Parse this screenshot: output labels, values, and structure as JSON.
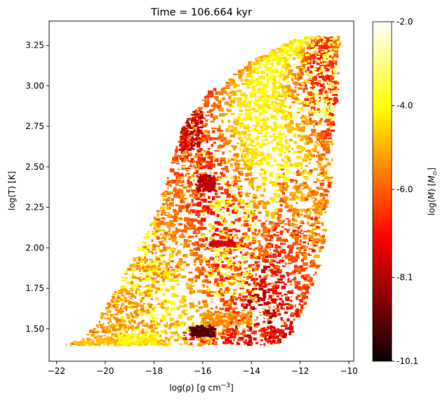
{
  "chart_data": {
    "type": "scatter",
    "title": "Time = 106.664 kyr",
    "xlabel": "log(ρ) [g cm−3]",
    "xlabel_parts": {
      "main": "log(ρ) [g cm",
      "sup": "−3",
      "tail": "]"
    },
    "ylabel": "log(T) [K]",
    "xlim": [
      -22.3,
      -9.8
    ],
    "ylim": [
      1.3,
      3.4
    ],
    "x_ticks": [
      -22,
      -20,
      -18,
      -16,
      -14,
      -12,
      -10
    ],
    "x_tick_labels": [
      "−22",
      "−20",
      "−18",
      "−16",
      "−14",
      "−12",
      "−10"
    ],
    "y_ticks": [
      1.5,
      1.75,
      2.0,
      2.25,
      2.5,
      2.75,
      3.0,
      3.25
    ],
    "y_tick_labels": [
      "1.50",
      "1.75",
      "2.00",
      "2.25",
      "2.50",
      "2.75",
      "3.00",
      "3.25"
    ],
    "grid": false,
    "colormap": "hot",
    "colorbar": {
      "label": "log(M) [M⊙]",
      "label_parts": {
        "pre": "log(",
        "var": "M",
        "mid": ") [",
        "sym": "M",
        "sub": "⊙",
        "post": "]"
      },
      "min": -10.1,
      "max": -2.0,
      "ticks": [
        -2.0,
        -4.0,
        -6.0,
        -8.1,
        -10.1
      ],
      "tick_labels": [
        "-2.0",
        "-4.0",
        "-6.0",
        "-8.1",
        "-10.1"
      ]
    },
    "point_clusters": [
      {
        "x": [
          -21.7,
          -17.5
        ],
        "y": [
          1.4,
          1.43
        ],
        "c": -4.8
      },
      {
        "x": [
          -21.0,
          -17.0
        ],
        "y": [
          1.42,
          1.55
        ],
        "c": -5.2
      },
      {
        "x": [
          -20.8,
          -18.0
        ],
        "y": [
          1.5,
          1.75
        ],
        "c": -5.5
      },
      {
        "x": [
          -19.8,
          -17.5
        ],
        "y": [
          1.6,
          2.0
        ],
        "c": -5.3
      },
      {
        "x": [
          -18.8,
          -17.0
        ],
        "y": [
          1.8,
          2.4
        ],
        "c": -5.6
      },
      {
        "x": [
          -18.0,
          -16.5
        ],
        "y": [
          2.0,
          2.75
        ],
        "c": -5.8
      },
      {
        "x": [
          -17.0,
          -15.8
        ],
        "y": [
          2.3,
          2.95
        ],
        "c": -5.4
      },
      {
        "x": [
          -17.0,
          -16.0
        ],
        "y": [
          2.6,
          2.85
        ],
        "c": -7.8
      },
      {
        "x": [
          -16.0,
          -14.0
        ],
        "y": [
          1.5,
          2.6
        ],
        "c": -4.5
      },
      {
        "x": [
          -15.5,
          -13.8
        ],
        "y": [
          1.7,
          2.3
        ],
        "c": -3.8
      },
      {
        "x": [
          -15.0,
          -13.0
        ],
        "y": [
          1.45,
          2.1
        ],
        "c": -5.6
      },
      {
        "x": [
          -14.5,
          -12.5
        ],
        "y": [
          2.5,
          3.0
        ],
        "c": -4.3
      },
      {
        "x": [
          -14.0,
          -11.5
        ],
        "y": [
          2.8,
          3.25
        ],
        "c": -4.0
      },
      {
        "x": [
          -13.5,
          -11.2
        ],
        "y": [
          1.45,
          2.2
        ],
        "c": -6.6
      },
      {
        "x": [
          -13.0,
          -11.0
        ],
        "y": [
          1.5,
          2.5
        ],
        "c": -6.1
      },
      {
        "x": [
          -12.5,
          -10.6
        ],
        "y": [
          2.2,
          3.0
        ],
        "c": -4.9
      },
      {
        "x": [
          -11.5,
          -10.4
        ],
        "y": [
          2.8,
          3.3
        ],
        "c": -3.3
      },
      {
        "x": [
          -16.8,
          -12.8
        ],
        "y": [
          1.4,
          1.5
        ],
        "c": -6.8
      },
      {
        "x": [
          -16.5,
          -15.5
        ],
        "y": [
          1.45,
          1.52
        ],
        "c": -9.2
      },
      {
        "x": [
          -16.2,
          -15.5
        ],
        "y": [
          2.35,
          2.45
        ],
        "c": -8.0
      },
      {
        "x": [
          -15.7,
          -14.7
        ],
        "y": [
          2.01,
          2.04
        ],
        "c": -7.5
      },
      {
        "x": [
          -16.0,
          -14.0
        ],
        "y": [
          1.52,
          1.6
        ],
        "c": -5.4
      },
      {
        "x": [
          -19.5,
          -17.8
        ],
        "y": [
          1.4,
          1.47
        ],
        "c": -4.2
      }
    ]
  }
}
